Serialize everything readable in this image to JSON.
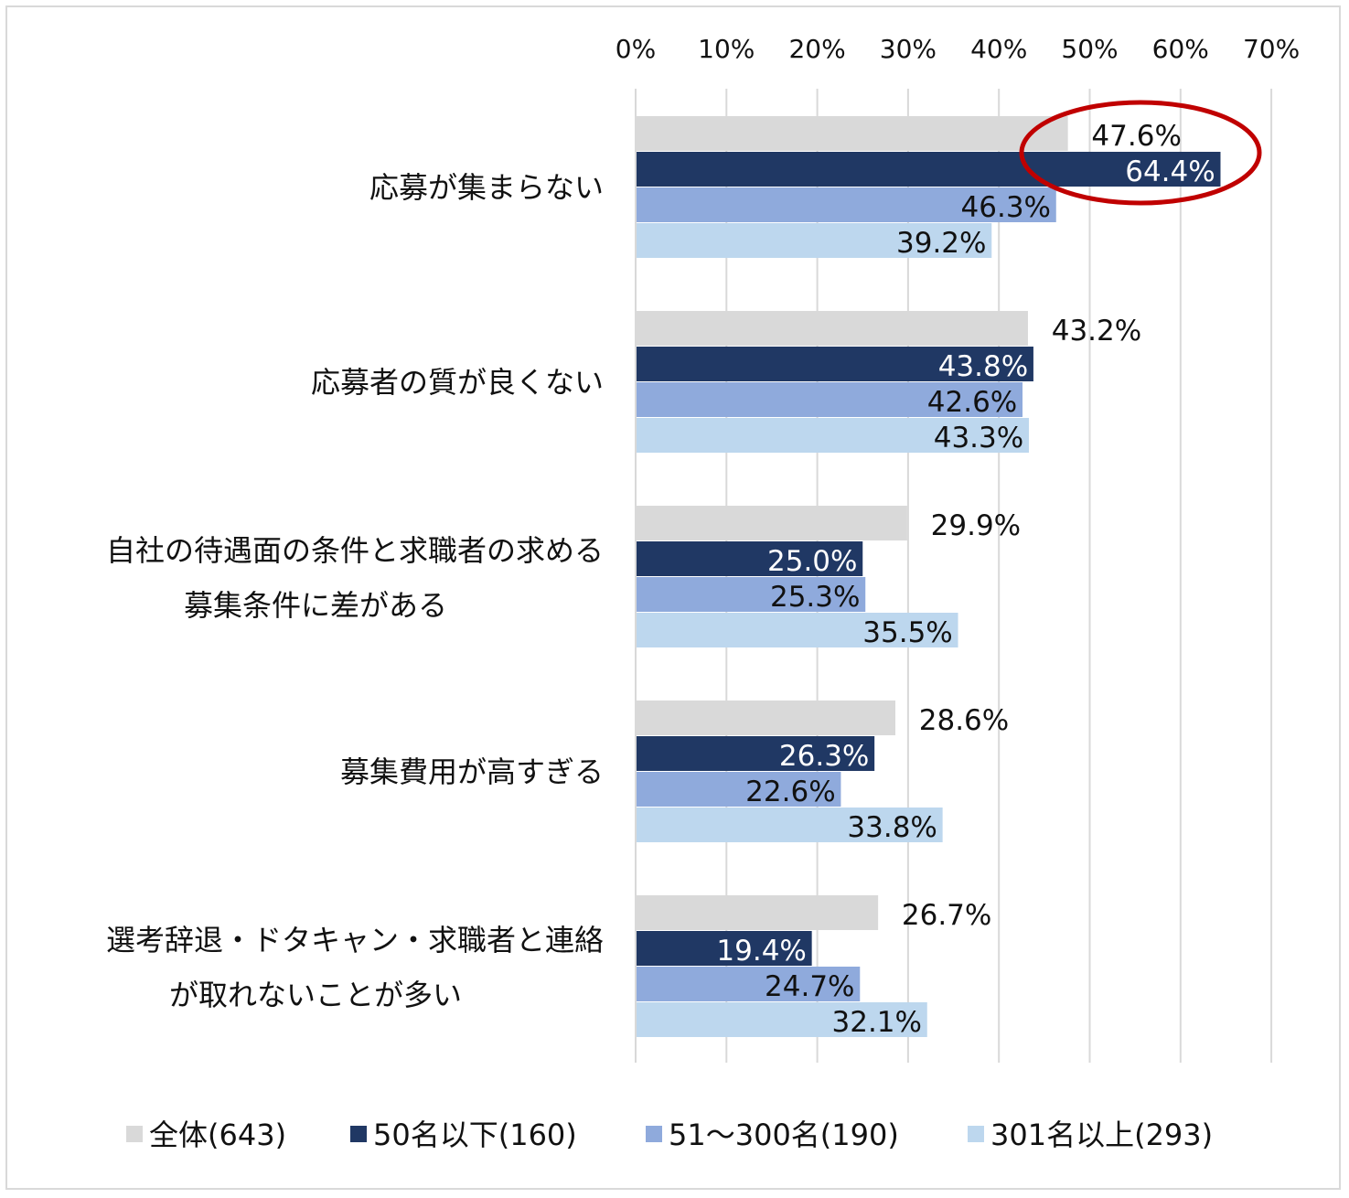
{
  "chart_data": {
    "type": "bar",
    "orientation": "horizontal",
    "xlim": [
      0,
      70
    ],
    "x_ticks": [
      "0%",
      "10%",
      "20%",
      "30%",
      "40%",
      "50%",
      "60%",
      "70%"
    ],
    "x_axis_position": "top",
    "grid": true,
    "legend_position": "bottom",
    "categories": [
      [
        "応募が集まらない"
      ],
      [
        "応募者の質が良くない"
      ],
      [
        "自社の待遇面の条件と求職者の求める",
        "募集条件に差がある"
      ],
      [
        "募集費用が高すぎる"
      ],
      [
        "選考辞退・ドタキャン・求職者と連絡",
        "が取れないことが多い"
      ]
    ],
    "series": [
      {
        "name": "全体(643)",
        "color": "#d9d9d9",
        "values": [
          47.6,
          43.2,
          29.9,
          28.6,
          26.7
        ],
        "labels": [
          "47.6%",
          "43.2%",
          "29.9%",
          "28.6%",
          "26.7%"
        ]
      },
      {
        "name": "50名以下(160)",
        "color": "#203864",
        "values": [
          64.4,
          43.8,
          25.0,
          26.3,
          19.4
        ],
        "labels": [
          "64.4%",
          "43.8%",
          "25.0%",
          "26.3%",
          "19.4%"
        ]
      },
      {
        "name": "51～300名(190)",
        "color": "#8faadc",
        "values": [
          46.3,
          42.6,
          25.3,
          22.6,
          24.7
        ],
        "labels": [
          "46.3%",
          "42.6%",
          "25.3%",
          "22.6%",
          "24.7%"
        ]
      },
      {
        "name": "301名以上(293)",
        "color": "#bdd7ee",
        "values": [
          39.2,
          43.3,
          35.5,
          33.8,
          32.1
        ],
        "labels": [
          "39.2%",
          "43.3%",
          "35.5%",
          "33.8%",
          "32.1%"
        ]
      }
    ],
    "annotations": [
      {
        "type": "ellipse-highlight",
        "color": "#c00000",
        "category_index": 0,
        "series": [
          "全体(643)",
          "50名以下(160)"
        ]
      }
    ]
  }
}
